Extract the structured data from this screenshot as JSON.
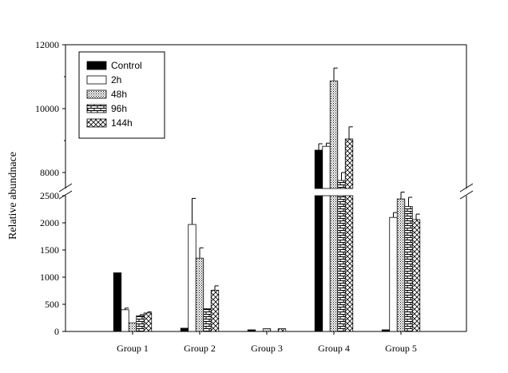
{
  "chart_data": {
    "type": "bar",
    "title": "",
    "xlabel": "",
    "ylabel": "Relative abundnace",
    "categories": [
      "Group 1",
      "Group 2",
      "Group 3",
      "Group 4",
      "Group 5"
    ],
    "y_axis_break": {
      "lower_range": [
        0,
        2500
      ],
      "upper_range": [
        7500,
        12000
      ]
    },
    "lower_ticks": [
      "0",
      "500",
      "1000",
      "1500",
      "2000",
      "2500"
    ],
    "upper_ticks": [
      "8000",
      "10000",
      "12000"
    ],
    "legend_position": "top-left",
    "grid": false,
    "series": [
      {
        "name": "Control",
        "pattern": "solid-black",
        "values": [
          1080,
          60,
          30,
          8700,
          30
        ],
        "errors": [
          0,
          0,
          0,
          200,
          0
        ]
      },
      {
        "name": "2h",
        "pattern": "white",
        "values": [
          400,
          1970,
          0,
          8820,
          2100
        ],
        "errors": [
          30,
          480,
          0,
          100,
          90
        ]
      },
      {
        "name": "48h",
        "pattern": "dots",
        "values": [
          160,
          1350,
          50,
          10870,
          2440
        ],
        "errors": [
          0,
          190,
          0,
          400,
          110
        ]
      },
      {
        "name": "96h",
        "pattern": "bricks",
        "values": [
          290,
          420,
          0,
          7750,
          2300
        ],
        "errors": [
          20,
          0,
          0,
          250,
          170
        ]
      },
      {
        "name": "144h",
        "pattern": "crosshatch",
        "values": [
          340,
          760,
          50,
          9050,
          2060
        ],
        "errors": [
          20,
          80,
          0,
          380,
          100
        ]
      }
    ]
  }
}
